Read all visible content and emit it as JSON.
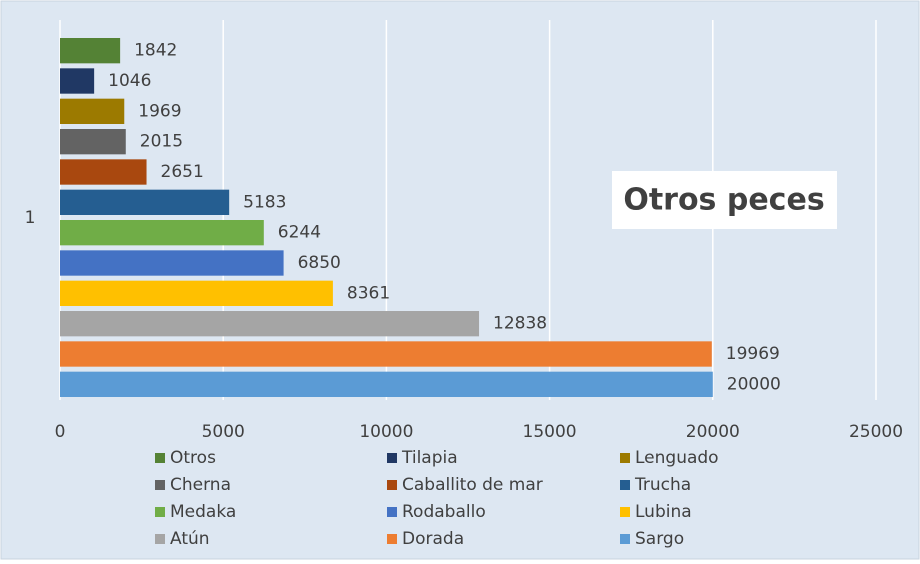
{
  "chart_data": {
    "type": "bar",
    "orientation": "horizontal",
    "title": "Otros peces",
    "categories": [
      "1"
    ],
    "series": [
      {
        "name": "Otros",
        "color": "#548235",
        "values": [
          1842
        ]
      },
      {
        "name": "Tilapia",
        "color": "#203864",
        "values": [
          1046
        ]
      },
      {
        "name": "Lenguado",
        "color": "#9c7a00",
        "values": [
          1969
        ]
      },
      {
        "name": "Cherna",
        "color": "#636363",
        "values": [
          2015
        ]
      },
      {
        "name": "Caballito de mar",
        "color": "#a9480f",
        "values": [
          2651
        ]
      },
      {
        "name": "Trucha",
        "color": "#255e91",
        "values": [
          5183
        ]
      },
      {
        "name": "Medaka",
        "color": "#70ad47",
        "values": [
          6244
        ]
      },
      {
        "name": "Rodaballo",
        "color": "#4472c4",
        "values": [
          6850
        ]
      },
      {
        "name": "Lubina",
        "color": "#ffc000",
        "values": [
          8361
        ]
      },
      {
        "name": "Atún",
        "color": "#a5a5a5",
        "values": [
          12838
        ]
      },
      {
        "name": "Dorada",
        "color": "#ed7d31",
        "values": [
          19969
        ]
      },
      {
        "name": "Sargo",
        "color": "#5b9bd5",
        "values": [
          20000
        ]
      }
    ],
    "xlim": [
      0,
      25000
    ],
    "xticks": [
      0,
      5000,
      10000,
      15000,
      20000,
      25000
    ],
    "grid": true,
    "legend": "bottom"
  }
}
